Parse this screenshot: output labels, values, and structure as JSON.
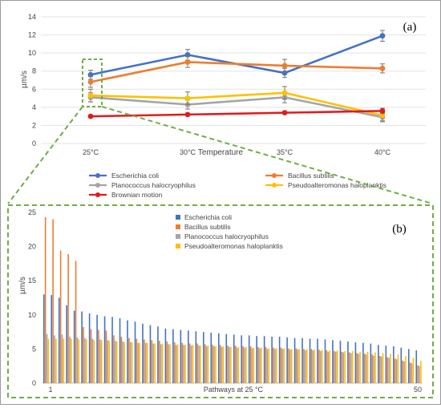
{
  "charts": [
    {
      "panel_label": "(a)",
      "type": "line",
      "x_title": "Temperature",
      "y_title": "µm/s",
      "categories": [
        "25°C",
        "30°C",
        "35°C",
        "40°C"
      ],
      "y_ticks": [
        "0",
        "2",
        "4",
        "6",
        "8",
        "10",
        "12",
        "14"
      ],
      "ylim": [
        0,
        14
      ],
      "grid": true,
      "legend_position": "bottom",
      "series": [
        {
          "name": "Escherichia coli",
          "color": "#4472c4",
          "values": [
            7.6,
            9.8,
            7.8,
            11.9
          ],
          "errors": [
            0.5,
            0.6,
            0.5,
            0.6
          ]
        },
        {
          "name": "Bacillus subtilis",
          "color": "#ed7d31",
          "values": [
            6.8,
            9.0,
            8.6,
            8.3
          ],
          "errors": [
            0.6,
            0.6,
            0.7,
            0.5
          ]
        },
        {
          "name": "Planococcus halocryophilus",
          "color": "#a5a5a5",
          "values": [
            5.1,
            4.3,
            5.1,
            2.9
          ],
          "errors": [
            0.5,
            0.5,
            0.6,
            0.5
          ]
        },
        {
          "name": "Pseudoalteromonas haloplanktis",
          "color": "#ffc000",
          "values": [
            5.3,
            5.0,
            5.6,
            3.1
          ],
          "errors": [
            0.7,
            0.7,
            0.7,
            0.6
          ]
        },
        {
          "name": "Brownian motion",
          "color": "#e31a1c",
          "values": [
            3.0,
            3.2,
            3.4,
            3.6
          ],
          "errors": [
            0.1,
            0.1,
            0.1,
            0.3
          ]
        }
      ]
    },
    {
      "panel_label": "(b)",
      "type": "bar",
      "x_title": "Pathways at 25 °C",
      "y_title": "µm/s",
      "x_tick_first": "1",
      "x_tick_last": "50",
      "y_ticks": [
        "0",
        "5",
        "10",
        "15",
        "20",
        "25"
      ],
      "ylim": [
        0,
        25
      ],
      "grid": false,
      "legend_position": "top-center",
      "series": [
        {
          "name": "Escherichia coli",
          "color": "#4472c4",
          "values": [
            13.0,
            12.9,
            12.5,
            11.4,
            10.6,
            10.5,
            10.2,
            10.0,
            9.8,
            9.7,
            9.5,
            9.2,
            9.0,
            8.7,
            8.5,
            8.3,
            8.0,
            7.9,
            7.8,
            7.7,
            7.6,
            7.5,
            7.4,
            7.3,
            7.2,
            7.1,
            7.0,
            7.0,
            6.9,
            6.9,
            6.8,
            6.8,
            6.7,
            6.6,
            6.6,
            6.5,
            6.5,
            6.4,
            6.3,
            6.2,
            6.1,
            6.0,
            5.9,
            5.8,
            5.6,
            5.5,
            5.4,
            5.2,
            5.0,
            4.8
          ]
        },
        {
          "name": "Bacillus subtilis",
          "color": "#ed7d31",
          "values": [
            24.3,
            24.0,
            19.4,
            18.9,
            17.9,
            8.2,
            7.9,
            7.8,
            7.7,
            7.0,
            6.8,
            6.6,
            6.5,
            6.4,
            6.3,
            6.2,
            6.1,
            6.0,
            5.9,
            5.8,
            5.8,
            5.7,
            5.6,
            5.6,
            5.5,
            5.5,
            5.4,
            5.4,
            5.3,
            5.3,
            5.2,
            5.2,
            5.1,
            5.1,
            5.0,
            5.0,
            4.9,
            4.8,
            4.7,
            4.6,
            4.5,
            4.4,
            4.3,
            4.2,
            4.0,
            3.8,
            3.6,
            3.3,
            3.0,
            2.6
          ]
        },
        {
          "name": "Planococcus halocryophilus",
          "color": "#a5a5a5",
          "values": [
            7.2,
            7.0,
            7.1,
            6.8,
            6.7,
            6.6,
            6.5,
            6.4,
            6.3,
            6.2,
            6.1,
            6.0,
            5.9,
            5.9,
            5.8,
            5.7,
            5.7,
            5.6,
            5.6,
            5.5,
            5.5,
            5.4,
            5.4,
            5.3,
            5.3,
            5.2,
            5.2,
            5.1,
            5.1,
            5.0,
            5.0,
            5.0,
            4.9,
            4.9,
            4.8,
            4.8,
            4.7,
            4.6,
            4.6,
            4.5,
            4.4,
            4.3,
            4.2,
            4.0,
            3.9,
            3.7,
            3.5,
            3.2,
            2.9,
            2.5
          ]
        },
        {
          "name": "Pseudoalteromonas haloplanktis",
          "color": "#ffc000",
          "values": [
            6.5,
            6.5,
            6.5,
            6.5,
            6.4,
            6.4,
            6.3,
            6.3,
            6.2,
            6.1,
            6.0,
            6.0,
            5.9,
            5.9,
            5.8,
            5.8,
            5.7,
            5.7,
            5.6,
            5.6,
            5.5,
            5.5,
            5.4,
            5.4,
            5.3,
            5.3,
            5.3,
            5.2,
            5.2,
            5.1,
            5.1,
            5.1,
            5.0,
            5.0,
            5.0,
            4.9,
            4.9,
            4.8,
            4.8,
            4.7,
            4.7,
            4.6,
            4.6,
            4.5,
            4.4,
            4.3,
            4.2,
            4.0,
            3.7,
            3.3
          ]
        }
      ]
    }
  ],
  "colors": {
    "connector": "#70ad47"
  }
}
